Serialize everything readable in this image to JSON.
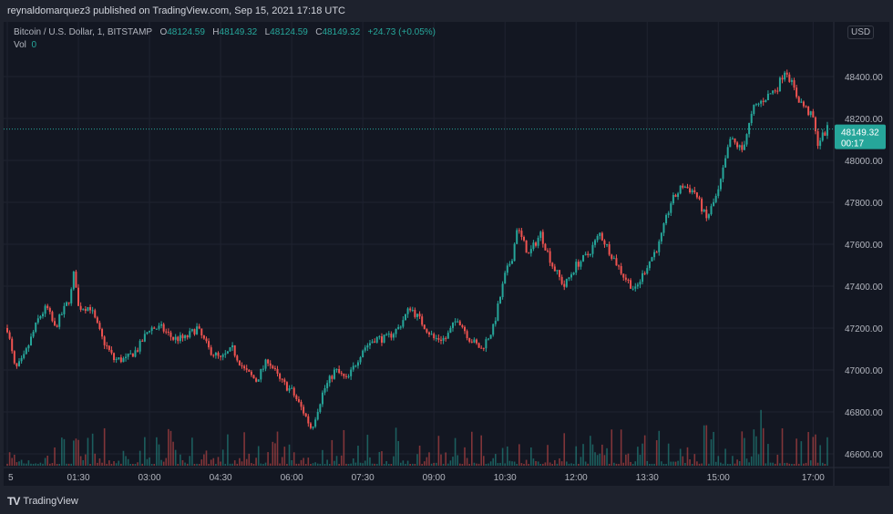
{
  "header": {
    "title": "reynaldomarquez3 published on TradingView.com, Sep 15, 2021 17:18 UTC"
  },
  "legend": {
    "symbol": "Bitcoin / U.S. Dollar, 1, BITSTAMP",
    "o_label": "O",
    "o": "48124.59",
    "h_label": "H",
    "h": "48149.32",
    "l_label": "L",
    "l": "48124.59",
    "c_label": "C",
    "c": "48149.32",
    "change": "+24.73 (+0.05%)",
    "vol_label": "Vol",
    "vol": "0"
  },
  "price_axis": {
    "currency": "USD",
    "last_price": "48149.32",
    "countdown": "00:17"
  },
  "footer": {
    "brand": "TradingView"
  },
  "colors": {
    "up": "#26a69a",
    "down": "#ef5350",
    "background": "#131722",
    "grid": "#1f2330"
  },
  "chart_data": {
    "type": "candlestick",
    "title": "Bitcoin / U.S. Dollar, 1, BITSTAMP",
    "ylim": [
      46560,
      48560
    ],
    "y_ticks": [
      46600,
      46800,
      47000,
      47200,
      47400,
      47600,
      47800,
      48000,
      48200,
      48400
    ],
    "x_tick_labels": [
      "5",
      "01:30",
      "03:00",
      "04:30",
      "06:00",
      "07:30",
      "09:00",
      "10:30",
      "12:00",
      "13:30",
      "15:00",
      "17:00"
    ],
    "x_ticks_minutes": [
      0,
      90,
      180,
      270,
      360,
      450,
      540,
      630,
      720,
      810,
      900,
      1020
    ],
    "grid": true,
    "price_path": {
      "time": [
        "00:00",
        "00:10",
        "00:20",
        "00:40",
        "00:50",
        "01:00",
        "01:20",
        "01:25",
        "01:30",
        "01:45",
        "02:00",
        "02:15",
        "02:30",
        "02:45",
        "03:00",
        "03:15",
        "03:30",
        "03:45",
        "04:00",
        "04:15",
        "04:30",
        "04:45",
        "05:00",
        "05:15",
        "05:30",
        "05:45",
        "06:00",
        "06:15",
        "06:25",
        "06:40",
        "06:55",
        "07:10",
        "07:30",
        "07:45",
        "08:00",
        "08:15",
        "08:30",
        "08:40",
        "09:00",
        "09:15",
        "09:30",
        "09:45",
        "10:00",
        "10:15",
        "10:30",
        "10:40",
        "10:45",
        "11:00",
        "11:15",
        "11:30",
        "11:45",
        "12:00",
        "12:15",
        "12:30",
        "12:45",
        "13:00",
        "13:15",
        "13:30",
        "13:45",
        "14:00",
        "14:15",
        "14:30",
        "14:45",
        "15:00",
        "15:15",
        "15:30",
        "15:45",
        "16:00",
        "16:15",
        "16:25",
        "16:40",
        "16:50",
        "17:00",
        "17:05",
        "17:18"
      ],
      "price": [
        47200,
        47000,
        47050,
        47250,
        47300,
        47200,
        47350,
        47480,
        47300,
        47300,
        47150,
        47050,
        47050,
        47100,
        47200,
        47200,
        47150,
        47150,
        47200,
        47100,
        47050,
        47100,
        47000,
        46950,
        47050,
        46950,
        46900,
        46800,
        46720,
        46900,
        47000,
        46950,
        47100,
        47150,
        47150,
        47200,
        47300,
        47250,
        47150,
        47150,
        47250,
        47150,
        47100,
        47200,
        47450,
        47550,
        47680,
        47550,
        47650,
        47500,
        47400,
        47500,
        47550,
        47650,
        47550,
        47450,
        47380,
        47500,
        47600,
        47800,
        47880,
        47850,
        47720,
        47850,
        48100,
        48050,
        48250,
        48300,
        48350,
        48440,
        48300,
        48250,
        48200,
        48080,
        48149.32
      ]
    },
    "last_price": 48149.32
  }
}
